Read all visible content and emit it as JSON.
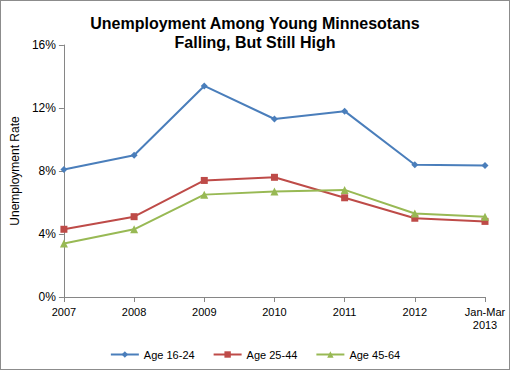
{
  "chart_data": {
    "type": "line",
    "title": "Unemployment Among Young Minnesotans\nFalling, But Still High",
    "y_label": "Unemployment Rate",
    "categories": [
      "2007",
      "2008",
      "2009",
      "2010",
      "2011",
      "2012",
      "Jan-Mar\n2013"
    ],
    "series": [
      {
        "name": "Age 16-24",
        "color": "#4a7ebb",
        "marker": "diamond",
        "values": [
          8.1,
          9.0,
          13.4,
          11.3,
          11.8,
          8.4,
          8.35
        ]
      },
      {
        "name": "Age 25-44",
        "color": "#be4b48",
        "marker": "square",
        "values": [
          4.3,
          5.1,
          7.4,
          7.6,
          6.3,
          5.0,
          4.8
        ]
      },
      {
        "name": "Age 45-64",
        "color": "#98b954",
        "marker": "triangle",
        "values": [
          3.4,
          4.3,
          6.5,
          6.7,
          6.8,
          5.3,
          5.1
        ]
      }
    ],
    "ylim": [
      0,
      16
    ],
    "yticks": [
      {
        "value": 0,
        "label": "0%"
      },
      {
        "value": 4,
        "label": "4%"
      },
      {
        "value": 8,
        "label": "8%"
      },
      {
        "value": 12,
        "label": "12%"
      },
      {
        "value": 16,
        "label": "16%"
      }
    ],
    "grid": false,
    "legend": "bottom"
  }
}
